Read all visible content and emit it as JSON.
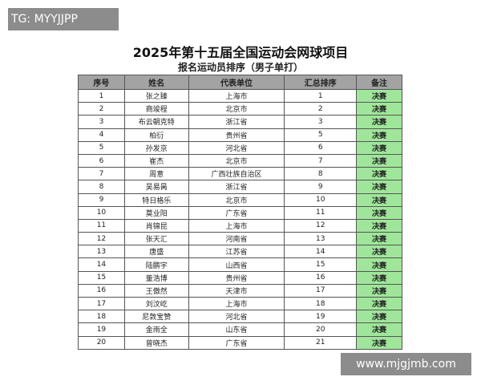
{
  "watermark_top": "TG: MYYJJPP",
  "watermark_bottom": "www.mjgjmb.com",
  "header": {
    "title": "2025年第十五届全国运动会网球项目",
    "subtitle": "报名运动员排序（男子单打）"
  },
  "table": {
    "columns": [
      "序号",
      "姓名",
      "代表单位",
      "汇总排序",
      "备注"
    ],
    "rows": [
      [
        "1",
        "张之臻",
        "上海市",
        "1",
        "决赛"
      ],
      [
        "2",
        "商竣程",
        "北京市",
        "2",
        "决赛"
      ],
      [
        "3",
        "布云朝克特",
        "浙江省",
        "3",
        "决赛"
      ],
      [
        "4",
        "柏衍",
        "贵州省",
        "5",
        "决赛"
      ],
      [
        "5",
        "孙发京",
        "河北省",
        "6",
        "决赛"
      ],
      [
        "6",
        "崔杰",
        "北京市",
        "7",
        "决赛"
      ],
      [
        "7",
        "周意",
        "广西壮族自治区",
        "8",
        "决赛"
      ],
      [
        "8",
        "吴易昺",
        "浙江省",
        "9",
        "决赛"
      ],
      [
        "9",
        "特日格乐",
        "北京市",
        "10",
        "决赛"
      ],
      [
        "10",
        "莫业阳",
        "广东省",
        "11",
        "决赛"
      ],
      [
        "11",
        "肖锦昆",
        "上海市",
        "12",
        "决赛"
      ],
      [
        "12",
        "张天汇",
        "河南省",
        "13",
        "决赛"
      ],
      [
        "13",
        "唐盛",
        "江苏省",
        "14",
        "决赛"
      ],
      [
        "14",
        "陆鹏宇",
        "山西省",
        "15",
        "决赛"
      ],
      [
        "15",
        "董浩博",
        "贵州省",
        "16",
        "决赛"
      ],
      [
        "16",
        "王傲然",
        "天津市",
        "17",
        "决赛"
      ],
      [
        "17",
        "刘汶屹",
        "上海市",
        "18",
        "决赛"
      ],
      [
        "18",
        "尼敦宝赞",
        "河北省",
        "19",
        "决赛"
      ],
      [
        "19",
        "金雨全",
        "山东省",
        "20",
        "决赛"
      ],
      [
        "20",
        "曾晓杰",
        "广东省",
        "21",
        "决赛"
      ]
    ]
  }
}
